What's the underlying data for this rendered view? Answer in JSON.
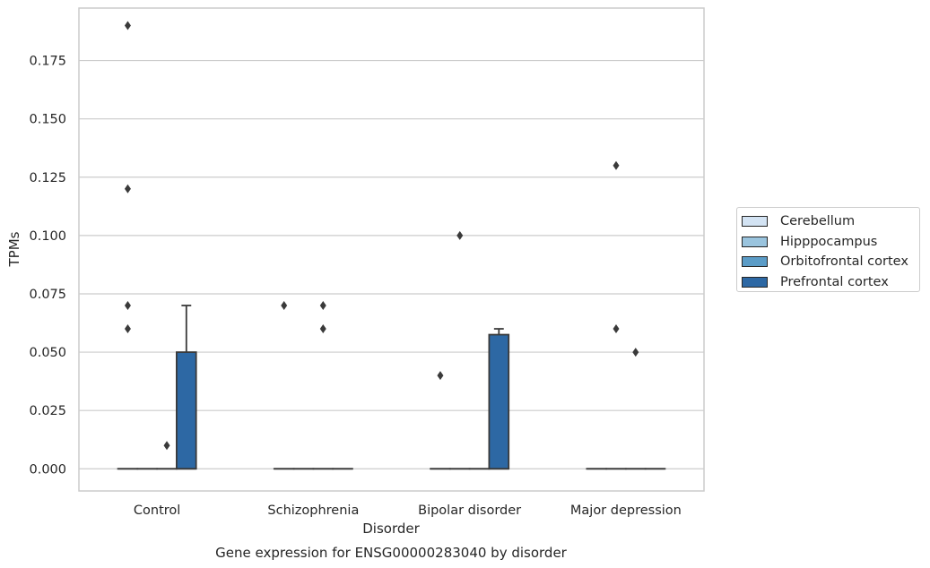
{
  "chart_data": {
    "type": "box",
    "title": "Gene expression for ENSG00000283040 by disorder",
    "xlabel": "Disorder",
    "ylabel": "TPMs",
    "categories": [
      "Control",
      "Schizophrenia",
      "Bipolar disorder",
      "Major depression"
    ],
    "ylim": [
      -0.0095,
      0.1975
    ],
    "yticks": [
      "0.000",
      "0.025",
      "0.050",
      "0.075",
      "0.100",
      "0.125",
      "0.150",
      "0.175"
    ],
    "grid": true,
    "legend_position": "center right outside",
    "series": [
      {
        "name": "Cerebellum",
        "color": "#d3e3f3",
        "boxes": [
          {
            "q1": 0,
            "median": 0,
            "q3": 0,
            "whislo": 0,
            "whishi": 0,
            "fliers": [
              0.19,
              0.12,
              0.07,
              0.06
            ]
          },
          {
            "q1": 0,
            "median": 0,
            "q3": 0,
            "whislo": 0,
            "whishi": 0,
            "fliers": [
              0.07
            ]
          },
          {
            "q1": 0,
            "median": 0,
            "q3": 0,
            "whislo": 0,
            "whishi": 0,
            "fliers": [
              0.04
            ]
          },
          {
            "q1": 0,
            "median": 0,
            "q3": 0,
            "whislo": 0,
            "whishi": 0,
            "fliers": []
          }
        ]
      },
      {
        "name": "Hipppocampus",
        "color": "#9ac4de",
        "boxes": [
          {
            "q1": 0,
            "median": 0,
            "q3": 0,
            "whislo": 0,
            "whishi": 0,
            "fliers": []
          },
          {
            "q1": 0,
            "median": 0,
            "q3": 0,
            "whislo": 0,
            "whishi": 0,
            "fliers": []
          },
          {
            "q1": 0,
            "median": 0,
            "q3": 0,
            "whislo": 0,
            "whishi": 0,
            "fliers": [
              0.1
            ]
          },
          {
            "q1": 0,
            "median": 0,
            "q3": 0,
            "whislo": 0,
            "whishi": 0,
            "fliers": [
              0.13,
              0.06
            ]
          }
        ]
      },
      {
        "name": "Orbitofrontal cortex",
        "color": "#5b9cc7",
        "boxes": [
          {
            "q1": 0,
            "median": 0,
            "q3": 0,
            "whislo": 0,
            "whishi": 0,
            "fliers": [
              0.01
            ]
          },
          {
            "q1": 0,
            "median": 0,
            "q3": 0,
            "whislo": 0,
            "whishi": 0,
            "fliers": [
              0.07,
              0.06
            ]
          },
          {
            "q1": 0,
            "median": 0,
            "q3": 0,
            "whislo": 0,
            "whishi": 0,
            "fliers": []
          },
          {
            "q1": 0,
            "median": 0,
            "q3": 0,
            "whislo": 0,
            "whishi": 0,
            "fliers": [
              0.05
            ]
          }
        ]
      },
      {
        "name": "Prefrontal cortex",
        "color": "#2d68a4",
        "boxes": [
          {
            "q1": 0,
            "median": 0,
            "q3": 0.05,
            "whislo": 0,
            "whishi": 0.07,
            "fliers": []
          },
          {
            "q1": 0,
            "median": 0,
            "q3": 0,
            "whislo": 0,
            "whishi": 0,
            "fliers": []
          },
          {
            "q1": 0,
            "median": 0,
            "q3": 0.0575,
            "whislo": 0,
            "whishi": 0.06,
            "fliers": []
          },
          {
            "q1": 0,
            "median": 0,
            "q3": 0,
            "whislo": 0,
            "whishi": 0,
            "fliers": []
          }
        ]
      }
    ]
  }
}
